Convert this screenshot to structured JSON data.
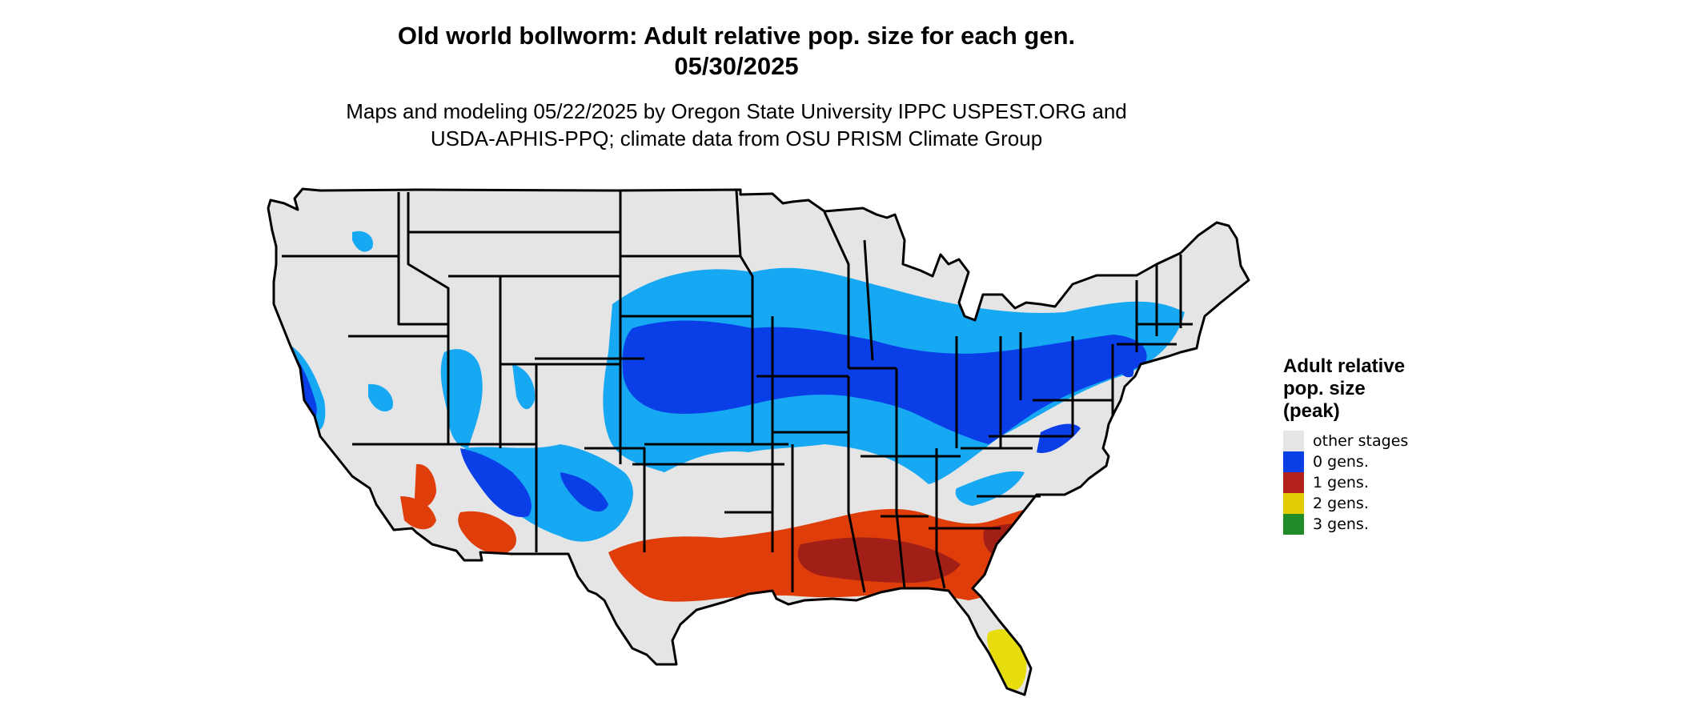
{
  "title": {
    "line1": "Old world bollworm: Adult relative pop. size for each gen.",
    "line2": "05/30/2025"
  },
  "subtitle": {
    "line1": "Maps and modeling 05/22/2025 by Oregon State University IPPC USPEST.ORG and",
    "line2": "USDA-APHIS-PPQ; climate data from OSU PRISM Climate Group"
  },
  "legend": {
    "title_lines": [
      "Adult relative",
      "pop. size",
      "(peak)"
    ],
    "items": [
      {
        "label": "other stages",
        "color": "#e5e5e5"
      },
      {
        "label": "0 gens.",
        "color": "#0a3ee6"
      },
      {
        "label": "1 gens.",
        "color": "#b2221a"
      },
      {
        "label": "2 gens.",
        "color": "#e2cc05"
      },
      {
        "label": "3 gens.",
        "color": "#218b2a"
      }
    ]
  },
  "map": {
    "region": "contiguous-united-states",
    "colors": {
      "land": "#e5e5e5",
      "border": "#000000",
      "light_blue": "#16a8f3",
      "blue": "#0a3ee6",
      "orange": "#df3d0a",
      "dark_red": "#a11f16",
      "yellow": "#e7dc0c",
      "green": "#2a9a2a"
    }
  }
}
